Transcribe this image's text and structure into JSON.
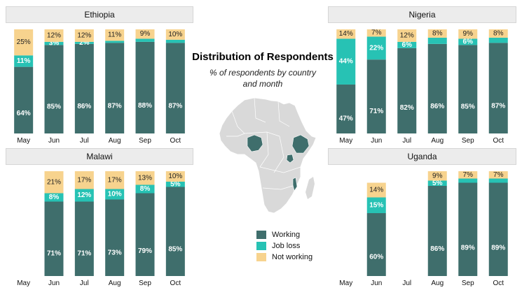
{
  "center": {
    "title": "Distribution of Respondents",
    "subtitle": "% of respondents by country and month"
  },
  "legend": [
    {
      "label": "Working",
      "color": "#3f6e6c"
    },
    {
      "label": "Job loss",
      "color": "#27c2b4"
    },
    {
      "label": "Not working",
      "color": "#f7d38e"
    }
  ],
  "chart_data": [
    {
      "type": "bar",
      "stacked": true,
      "title": "Ethiopia",
      "categories": [
        "May",
        "Jun",
        "Jul",
        "Aug",
        "Sep",
        "Oct"
      ],
      "ylim": [
        0,
        100
      ],
      "series": [
        {
          "name": "Working",
          "values": [
            64,
            85,
            86,
            87,
            88,
            87
          ]
        },
        {
          "name": "Job loss",
          "values": [
            11,
            3,
            2,
            2,
            3,
            3
          ]
        },
        {
          "name": "Not working",
          "values": [
            25,
            12,
            12,
            11,
            9,
            10
          ]
        }
      ],
      "labels": {
        "Working": [
          "64%",
          "85%",
          "86%",
          "87%",
          "88%",
          "87%"
        ],
        "Job loss": [
          "11%",
          "3%",
          "2%",
          "",
          "",
          ""
        ],
        "Not working": [
          "25%",
          "12%",
          "12%",
          "11%",
          "9%",
          "10%"
        ]
      }
    },
    {
      "type": "bar",
      "stacked": true,
      "title": "Nigeria",
      "categories": [
        "May",
        "Jun",
        "Jul",
        "Aug",
        "Sep",
        "Oct"
      ],
      "ylim": [
        0,
        100
      ],
      "series": [
        {
          "name": "Working",
          "values": [
            47,
            71,
            82,
            86,
            85,
            87
          ]
        },
        {
          "name": "Job loss",
          "values": [
            44,
            22,
            6,
            6,
            6,
            5
          ]
        },
        {
          "name": "Not working",
          "values": [
            14,
            7,
            12,
            8,
            9,
            8
          ]
        }
      ],
      "labels": {
        "Working": [
          "47%",
          "71%",
          "82%",
          "86%",
          "85%",
          "87%"
        ],
        "Job loss": [
          "44%",
          "22%",
          "6%",
          "",
          "6%",
          ""
        ],
        "Not working": [
          "14%",
          "7%",
          "12%",
          "8%",
          "9%",
          "8%"
        ]
      }
    },
    {
      "type": "bar",
      "stacked": true,
      "title": "Malawi",
      "categories": [
        "May",
        "Jun",
        "Jul",
        "Aug",
        "Sep",
        "Oct"
      ],
      "ylim": [
        0,
        100
      ],
      "series": [
        {
          "name": "Working",
          "values": [
            null,
            71,
            71,
            73,
            79,
            85
          ]
        },
        {
          "name": "Job loss",
          "values": [
            null,
            8,
            12,
            10,
            8,
            5
          ]
        },
        {
          "name": "Not working",
          "values": [
            null,
            21,
            17,
            17,
            13,
            10
          ]
        }
      ],
      "labels": {
        "Working": [
          "",
          "71%",
          "71%",
          "73%",
          "79%",
          "85%"
        ],
        "Job loss": [
          "",
          "8%",
          "12%",
          "10%",
          "8%",
          "5%"
        ],
        "Not working": [
          "",
          "21%",
          "17%",
          "17%",
          "13%",
          "10%"
        ]
      }
    },
    {
      "type": "bar",
      "stacked": true,
      "title": "Uganda",
      "categories": [
        "May",
        "Jun",
        "Jul",
        "Aug",
        "Sep",
        "Oct"
      ],
      "ylim": [
        0,
        100
      ],
      "series": [
        {
          "name": "Working",
          "values": [
            null,
            60,
            null,
            86,
            89,
            89
          ]
        },
        {
          "name": "Job loss",
          "values": [
            null,
            15,
            null,
            5,
            4,
            4
          ]
        },
        {
          "name": "Not working",
          "values": [
            null,
            14,
            null,
            9,
            7,
            7
          ]
        }
      ],
      "labels": {
        "Working": [
          "",
          "60%",
          "",
          "86%",
          "89%",
          "89%"
        ],
        "Job loss": [
          "",
          "15%",
          "",
          "5%",
          "",
          ""
        ],
        "Not working": [
          "",
          "14%",
          "",
          "9%",
          "7%",
          "7%"
        ]
      }
    }
  ]
}
